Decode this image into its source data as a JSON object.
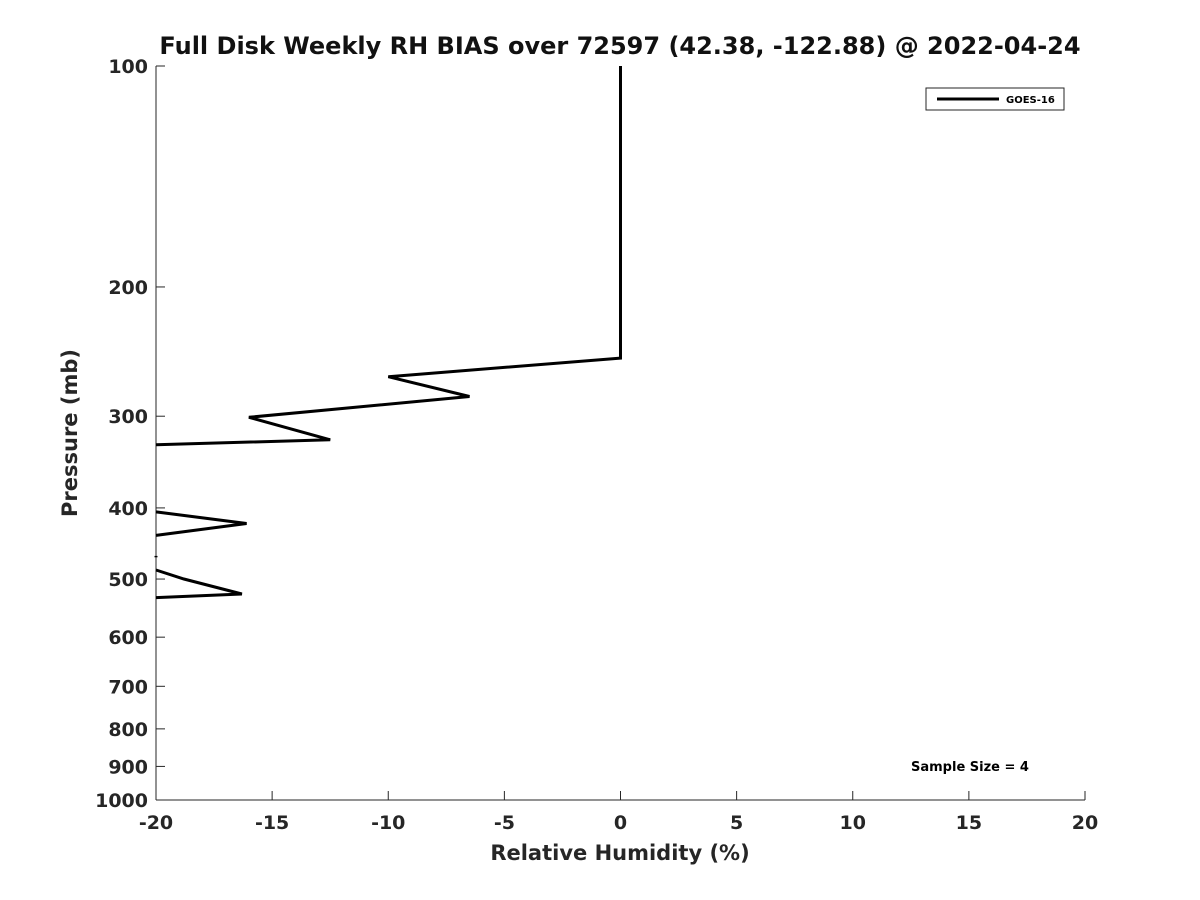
{
  "chart_data": {
    "type": "line",
    "title": "Full Disk Weekly RH BIAS over 72597 (42.38, -122.88) @ 2022-04-24",
    "xlabel": "Relative Humidity (%)",
    "ylabel": "Pressure (mb)",
    "xlim": [
      -20,
      20
    ],
    "ylim": [
      100,
      1000
    ],
    "y_scale": "log",
    "y_reversed": true,
    "grid": false,
    "x_ticks": [
      -20,
      -15,
      -10,
      -5,
      0,
      5,
      10,
      15,
      20
    ],
    "x_tick_labels": [
      "-20",
      "-15",
      "-10",
      "-5",
      "0",
      "5",
      "10",
      "15",
      "20"
    ],
    "y_ticks": [
      100,
      200,
      300,
      400,
      500,
      600,
      700,
      800,
      900,
      1000
    ],
    "y_tick_labels": [
      "100",
      "200",
      "300",
      "400",
      "500",
      "600",
      "700",
      "800",
      "900",
      "1000"
    ],
    "legend_position": "top-right",
    "series": [
      {
        "name": "GOES-16",
        "color": "#000000",
        "segments": [
          {
            "x": [
              0,
              0,
              0,
              0,
              -10,
              -6.5,
              -16,
              -12.5,
              -20
            ],
            "y": [
              100,
              150,
              175,
              250,
              265,
              282,
              301,
              323,
              328
            ]
          },
          {
            "x": [
              -20,
              -16.1,
              -20
            ],
            "y": [
              405,
              420,
              436
            ]
          },
          {
            "x": [
              -20,
              -20
            ],
            "y": [
              465,
              467
            ]
          },
          {
            "x": [
              -20,
              -18.8,
              -16.3,
              -20
            ],
            "y": [
              486,
              500,
              524,
              530
            ]
          }
        ]
      }
    ],
    "annotations": [
      {
        "text": "Sample Size = 4",
        "position": "bottom-right"
      }
    ]
  }
}
